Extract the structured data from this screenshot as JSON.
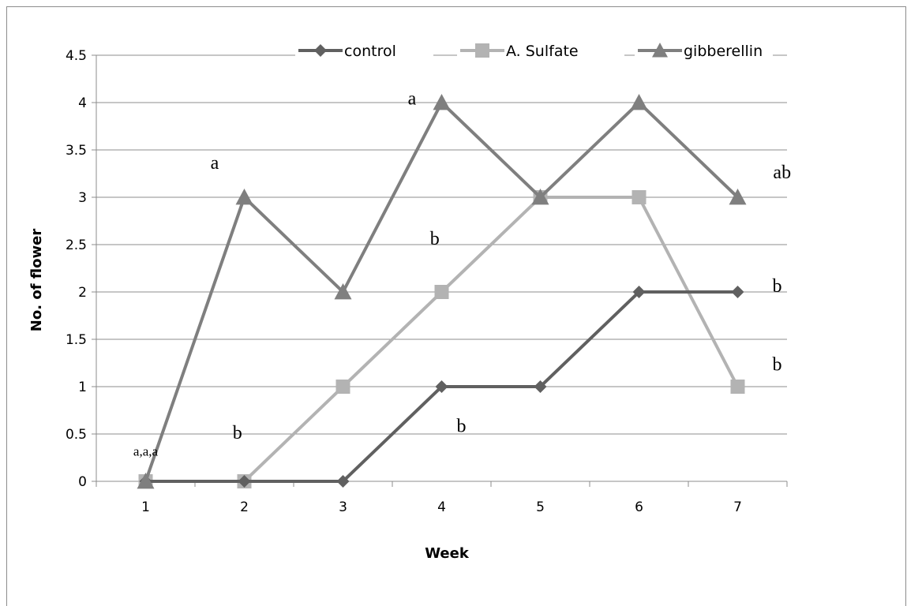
{
  "chart_data": {
    "type": "line",
    "title": "",
    "xlabel": "Week",
    "ylabel": "No. of flower",
    "categories": [
      "1",
      "2",
      "3",
      "4",
      "5",
      "6",
      "7"
    ],
    "ylim": [
      0,
      4.5
    ],
    "y_ticks": [
      "0",
      "0.5",
      "1",
      "1.5",
      "2",
      "2.5",
      "3",
      "3.5",
      "4",
      "4.5"
    ],
    "grid": "horizontal",
    "legend_position": "top",
    "series": [
      {
        "name": "control",
        "values": [
          0,
          0,
          0,
          1,
          1,
          2,
          2
        ],
        "color": "#606060",
        "marker": "diamond"
      },
      {
        "name": "A. Sulfate",
        "values": [
          0,
          0,
          1,
          2,
          3,
          3,
          1
        ],
        "color": "#b3b3b3",
        "marker": "square"
      },
      {
        "name": "gibberellin",
        "values": [
          0,
          3,
          2,
          4,
          3,
          4,
          3
        ],
        "color": "#7f7f7f",
        "marker": "triangle"
      }
    ],
    "annotations": [
      {
        "text": "a,a,a",
        "x": 1,
        "y": 0.27,
        "size": "small"
      },
      {
        "text": "a",
        "x": 1.7,
        "y": 3.3
      },
      {
        "text": "b",
        "x": 1.93,
        "y": 0.45
      },
      {
        "text": "a",
        "x": 3.7,
        "y": 3.98
      },
      {
        "text": "b",
        "x": 3.93,
        "y": 2.5
      },
      {
        "text": "b",
        "x": 4.2,
        "y": 0.52
      },
      {
        "text": "ab",
        "x": 7.45,
        "y": 3.2
      },
      {
        "text": "b",
        "x": 7.4,
        "y": 2.0
      },
      {
        "text": "b",
        "x": 7.4,
        "y": 1.17
      }
    ]
  }
}
